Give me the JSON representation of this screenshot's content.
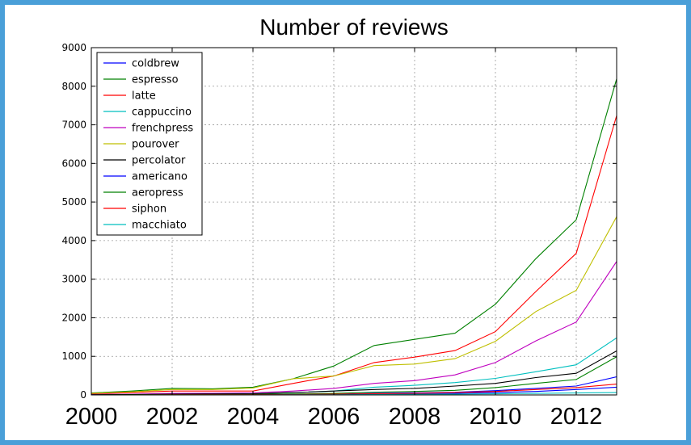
{
  "chart_data": {
    "type": "line",
    "title": "Number of reviews",
    "xlabel": "",
    "ylabel": "",
    "xlim": [
      2000,
      2013
    ],
    "ylim": [
      0,
      9000
    ],
    "xticks": [
      2000,
      2002,
      2004,
      2006,
      2008,
      2010,
      2012
    ],
    "yticks": [
      0,
      1000,
      2000,
      3000,
      4000,
      5000,
      6000,
      7000,
      8000,
      9000
    ],
    "grid": true,
    "legend_position": "top-left",
    "x": [
      2000,
      2001,
      2002,
      2003,
      2004,
      2005,
      2006,
      2007,
      2008,
      2009,
      2010,
      2011,
      2012,
      2013
    ],
    "series": [
      {
        "name": "coldbrew",
        "color": "#0000ff",
        "values": [
          0,
          0,
          0,
          0,
          0,
          5,
          10,
          20,
          30,
          40,
          60,
          90,
          140,
          200
        ]
      },
      {
        "name": "espresso",
        "color": "#008000",
        "values": [
          50,
          100,
          170,
          160,
          200,
          420,
          750,
          1280,
          1440,
          1600,
          2350,
          3530,
          4540,
          8190
        ]
      },
      {
        "name": "latte",
        "color": "#ff0000",
        "values": [
          30,
          60,
          100,
          100,
          100,
          300,
          490,
          840,
          980,
          1150,
          1640,
          2680,
          3670,
          7240
        ]
      },
      {
        "name": "cappuccino",
        "color": "#00bfbf",
        "values": [
          5,
          10,
          20,
          25,
          30,
          60,
          100,
          200,
          250,
          320,
          430,
          600,
          780,
          1480
        ]
      },
      {
        "name": "frenchpress",
        "color": "#bf00bf",
        "values": [
          10,
          20,
          40,
          45,
          55,
          100,
          170,
          300,
          370,
          520,
          840,
          1400,
          1890,
          3460
        ]
      },
      {
        "name": "pourover",
        "color": "#bfbf00",
        "values": [
          40,
          80,
          140,
          140,
          180,
          420,
          490,
          760,
          800,
          940,
          1390,
          2160,
          2710,
          4620
        ]
      },
      {
        "name": "percolator",
        "color": "#000000",
        "values": [
          5,
          10,
          20,
          25,
          30,
          60,
          100,
          140,
          170,
          230,
          300,
          450,
          560,
          1140
        ]
      },
      {
        "name": "americano",
        "color": "#0000ff",
        "values": [
          0,
          0,
          5,
          5,
          10,
          15,
          20,
          40,
          55,
          70,
          110,
          170,
          230,
          470
        ]
      },
      {
        "name": "aeropress",
        "color": "#008000",
        "values": [
          0,
          5,
          10,
          10,
          15,
          25,
          40,
          70,
          90,
          120,
          190,
          300,
          400,
          990
        ]
      },
      {
        "name": "siphon",
        "color": "#ff0000",
        "values": [
          0,
          0,
          5,
          5,
          5,
          10,
          20,
          30,
          40,
          60,
          90,
          140,
          190,
          280
        ]
      },
      {
        "name": "macchiato",
        "color": "#00bfbf",
        "values": [
          0,
          0,
          0,
          0,
          0,
          5,
          5,
          10,
          15,
          20,
          30,
          40,
          50,
          60
        ]
      }
    ]
  }
}
